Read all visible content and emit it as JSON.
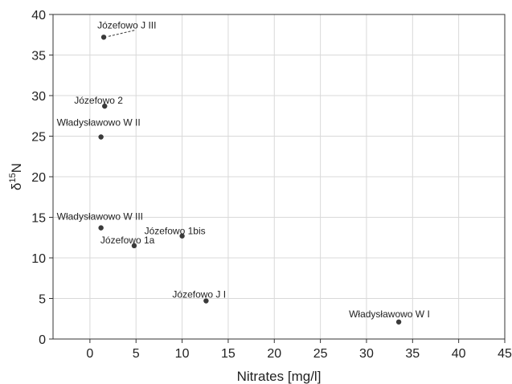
{
  "chart_data": {
    "type": "scatter",
    "xlabel": "Nitrates [mg/l]",
    "ylabel_main": "δ",
    "ylabel_sup": "15",
    "ylabel_tail": "N",
    "xlim": [
      -4,
      45
    ],
    "ylim": [
      0,
      40
    ],
    "xticks": [
      0,
      5,
      10,
      15,
      20,
      25,
      30,
      35,
      40,
      45
    ],
    "yticks": [
      0,
      5,
      10,
      15,
      20,
      25,
      30,
      35,
      40
    ],
    "grid": true,
    "marker_color": "#3a3a3a",
    "points": [
      {
        "label": "Józefowo J III",
        "x": 1.5,
        "y": 37.2
      },
      {
        "label": "Józefowo 2",
        "x": 1.6,
        "y": 28.7
      },
      {
        "label": "Władysławowo W II",
        "x": 1.2,
        "y": 24.9
      },
      {
        "label": "Władysławowo W III",
        "x": 1.2,
        "y": 13.7
      },
      {
        "label": "Józefowo 1bis",
        "x": 10.0,
        "y": 12.7
      },
      {
        "label": "Józefowo 1a",
        "x": 4.8,
        "y": 11.5
      },
      {
        "label": "Józefowo J I",
        "x": 12.6,
        "y": 4.7
      },
      {
        "label": "Władysławowo W I",
        "x": 33.5,
        "y": 2.1
      }
    ]
  }
}
